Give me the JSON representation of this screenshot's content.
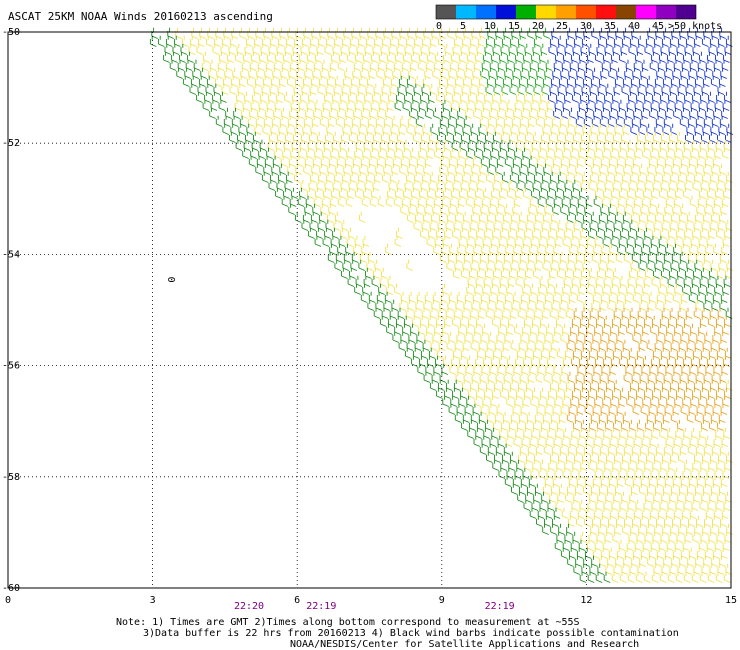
{
  "title": "ASCAT 25KM NOAA Winds 20160213 ascending",
  "colorbar": {
    "labels": [
      "0",
      "5",
      "10",
      "15",
      "20",
      "25",
      "30",
      "35",
      "40",
      "45",
      ">50 knots"
    ],
    "colors": [
      "#555555",
      "#00b8ff",
      "#0070ff",
      "#0010d8",
      "#00b000",
      "#ffd800",
      "#ffa000",
      "#ff5000",
      "#ff1010",
      "#884400",
      "#ff00ff",
      "#9000c0",
      "#500090"
    ]
  },
  "chart_data": {
    "type": "scatter",
    "title": "ASCAT 25KM NOAA Winds 20160213 ascending",
    "xlabel": "",
    "ylabel": "",
    "xlim": [
      0,
      15
    ],
    "ylim": [
      -60,
      -50
    ],
    "x_ticks": [
      "0",
      "3",
      "6",
      "9",
      "12",
      "15"
    ],
    "y_ticks": [
      "-50",
      "-52",
      "-54",
      "-56",
      "-58",
      "-60"
    ],
    "grid": true,
    "legend": "colorbar top-right",
    "marker": "wind barbs",
    "point_label": {
      "x": 3.4,
      "y": -54.4,
      "text": "0"
    },
    "time_labels": [
      {
        "x": 5.0,
        "text": "22:20"
      },
      {
        "x": 6.5,
        "text": "22:19"
      },
      {
        "x": 10.2,
        "text": "22:19"
      }
    ],
    "swath_regions": [
      {
        "speed_class": "15-20 knots",
        "color": "#1a8c1a",
        "area": "left swath edge and diagonal band"
      },
      {
        "speed_class": "20-25 knots",
        "color": "#f2e24a",
        "area": "main swath interior"
      },
      {
        "speed_class": "25-30 knots",
        "color": "#e6a21a",
        "area": "around 13E 56S"
      },
      {
        "speed_class": "10-15 knots",
        "color": "#1030d0",
        "area": "north-east corner"
      }
    ]
  },
  "notes": {
    "line1": "Note: 1) Times are GMT 2)Times along bottom correspond to measurement at ~55S",
    "line2": "3)Data buffer is 22 hrs from 20160213 4) Black wind barbs indicate possible contamination",
    "line3": "NOAA/NESDIS/Center for Satellite Applications and Research"
  }
}
